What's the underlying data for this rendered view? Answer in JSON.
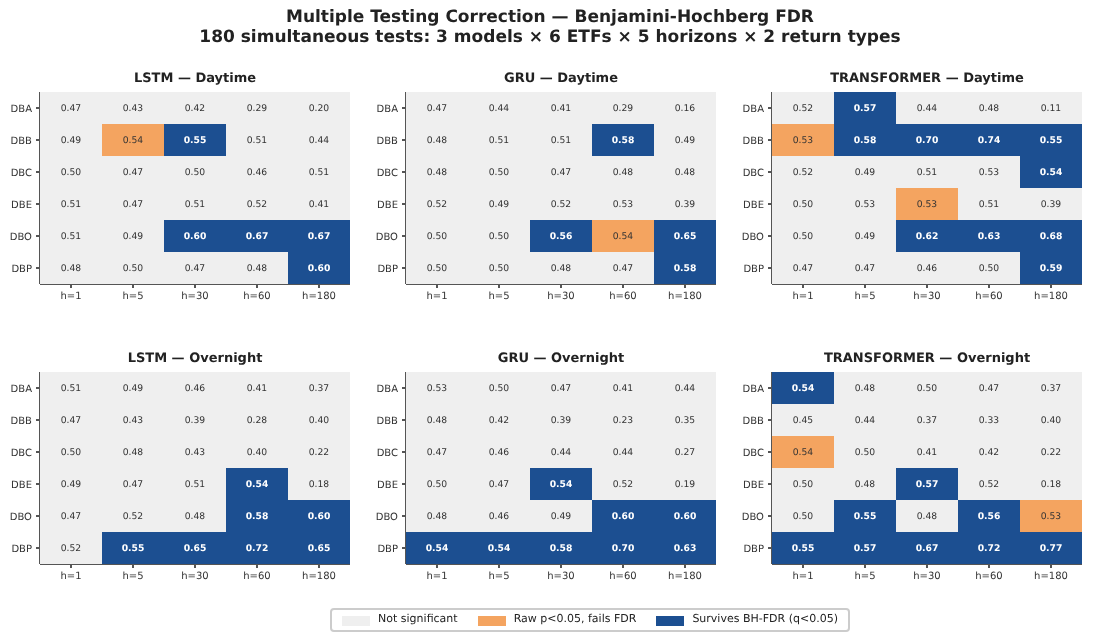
{
  "chart_data": [
    {
      "type": "heatmap",
      "data_labels": true,
      "title": "Multiple Testing Correction — Benjamini-Hochberg FDR",
      "subtitle": "180 simultaneous tests: 3 models × 6 ETFs × 5 horizons × 2 return types",
      "annotations": [
        "LSTM — Daytime"
      ],
      "categories": [
        "h=1",
        "h=5",
        "h=30",
        "h=60",
        "h=180"
      ],
      "y_categories": [
        "DBA",
        "DBB",
        "DBC",
        "DBE",
        "DBO",
        "DBP"
      ],
      "cell_labels": [
        [
          "0.47",
          "0.43",
          "0.42",
          "0.29",
          "0.20"
        ],
        [
          "0.49",
          "0.54",
          "0.55",
          "0.51",
          "0.44"
        ],
        [
          "0.50",
          "0.47",
          "0.50",
          "0.46",
          "0.51"
        ],
        [
          "0.51",
          "0.47",
          "0.51",
          "0.52",
          "0.41"
        ],
        [
          "0.51",
          "0.49",
          "0.60",
          "0.67",
          "0.67"
        ],
        [
          "0.48",
          "0.50",
          "0.47",
          "0.48",
          "0.60"
        ]
      ],
      "cells": [
        [
          0.47,
          0.43,
          0.42,
          0.29,
          0.2
        ],
        [
          0.49,
          0.54,
          0.55,
          0.51,
          0.44
        ],
        [
          0.5,
          0.47,
          0.5,
          0.46,
          0.51
        ],
        [
          0.51,
          0.47,
          0.51,
          0.52,
          0.41
        ],
        [
          0.51,
          0.49,
          0.6,
          0.67,
          0.67
        ],
        [
          0.48,
          0.5,
          0.47,
          0.48,
          0.6
        ]
      ],
      "colors": [
        [
          "#efefef",
          "#efefef",
          "#efefef",
          "#efefef",
          "#efefef"
        ],
        [
          "#efefef",
          "#f4a460",
          "#1c4f91",
          "#efefef",
          "#efefef"
        ],
        [
          "#efefef",
          "#efefef",
          "#efefef",
          "#efefef",
          "#efefef"
        ],
        [
          "#efefef",
          "#efefef",
          "#efefef",
          "#efefef",
          "#efefef"
        ],
        [
          "#efefef",
          "#efefef",
          "#1c4f91",
          "#1c4f91",
          "#1c4f91"
        ],
        [
          "#efefef",
          "#efefef",
          "#efefef",
          "#efefef",
          "#1c4f91"
        ]
      ]
    },
    {
      "type": "heatmap",
      "data_labels": true,
      "annotations": [
        "GRU — Daytime"
      ],
      "categories": [
        "h=1",
        "h=5",
        "h=30",
        "h=60",
        "h=180"
      ],
      "y_categories": [
        "DBA",
        "DBB",
        "DBC",
        "DBE",
        "DBO",
        "DBP"
      ],
      "cell_labels": [
        [
          "0.47",
          "0.44",
          "0.41",
          "0.29",
          "0.16"
        ],
        [
          "0.48",
          "0.51",
          "0.51",
          "0.58",
          "0.49"
        ],
        [
          "0.48",
          "0.50",
          "0.47",
          "0.48",
          "0.48"
        ],
        [
          "0.52",
          "0.49",
          "0.52",
          "0.53",
          "0.39"
        ],
        [
          "0.50",
          "0.50",
          "0.56",
          "0.54",
          "0.65"
        ],
        [
          "0.50",
          "0.50",
          "0.48",
          "0.47",
          "0.58"
        ]
      ],
      "cells": [
        [
          0.47,
          0.44,
          0.41,
          0.29,
          0.16
        ],
        [
          0.48,
          0.51,
          0.51,
          0.58,
          0.49
        ],
        [
          0.48,
          0.5,
          0.47,
          0.48,
          0.48
        ],
        [
          0.52,
          0.49,
          0.52,
          0.53,
          0.39
        ],
        [
          0.5,
          0.5,
          0.56,
          0.54,
          0.65
        ],
        [
          0.5,
          0.5,
          0.48,
          0.47,
          0.58
        ]
      ],
      "colors": [
        [
          "#efefef",
          "#efefef",
          "#efefef",
          "#efefef",
          "#efefef"
        ],
        [
          "#efefef",
          "#efefef",
          "#efefef",
          "#1c4f91",
          "#efefef"
        ],
        [
          "#efefef",
          "#efefef",
          "#efefef",
          "#efefef",
          "#efefef"
        ],
        [
          "#efefef",
          "#efefef",
          "#efefef",
          "#efefef",
          "#efefef"
        ],
        [
          "#efefef",
          "#efefef",
          "#1c4f91",
          "#f4a460",
          "#1c4f91"
        ],
        [
          "#efefef",
          "#efefef",
          "#efefef",
          "#efefef",
          "#1c4f91"
        ]
      ]
    },
    {
      "type": "heatmap",
      "data_labels": true,
      "annotations": [
        "TRANSFORMER — Daytime"
      ],
      "categories": [
        "h=1",
        "h=5",
        "h=30",
        "h=60",
        "h=180"
      ],
      "y_categories": [
        "DBA",
        "DBB",
        "DBC",
        "DBE",
        "DBO",
        "DBP"
      ],
      "cell_labels": [
        [
          "0.52",
          "0.57",
          "0.44",
          "0.48",
          "0.11"
        ],
        [
          "0.53",
          "0.58",
          "0.70",
          "0.74",
          "0.55"
        ],
        [
          "0.52",
          "0.49",
          "0.51",
          "0.53",
          "0.54"
        ],
        [
          "0.50",
          "0.53",
          "0.53",
          "0.51",
          "0.39"
        ],
        [
          "0.50",
          "0.49",
          "0.62",
          "0.63",
          "0.68"
        ],
        [
          "0.47",
          "0.47",
          "0.46",
          "0.50",
          "0.59"
        ]
      ],
      "cells": [
        [
          0.52,
          0.57,
          0.44,
          0.48,
          0.11
        ],
        [
          0.53,
          0.58,
          0.7,
          0.74,
          0.55
        ],
        [
          0.52,
          0.49,
          0.51,
          0.53,
          0.54
        ],
        [
          0.5,
          0.53,
          0.53,
          0.51,
          0.39
        ],
        [
          0.5,
          0.49,
          0.62,
          0.63,
          0.68
        ],
        [
          0.47,
          0.47,
          0.46,
          0.5,
          0.59
        ]
      ],
      "colors": [
        [
          "#efefef",
          "#1c4f91",
          "#efefef",
          "#efefef",
          "#efefef"
        ],
        [
          "#f4a460",
          "#1c4f91",
          "#1c4f91",
          "#1c4f91",
          "#1c4f91"
        ],
        [
          "#efefef",
          "#efefef",
          "#efefef",
          "#efefef",
          "#1c4f91"
        ],
        [
          "#efefef",
          "#efefef",
          "#f4a460",
          "#efefef",
          "#efefef"
        ],
        [
          "#efefef",
          "#efefef",
          "#1c4f91",
          "#1c4f91",
          "#1c4f91"
        ],
        [
          "#efefef",
          "#efefef",
          "#efefef",
          "#efefef",
          "#1c4f91"
        ]
      ]
    },
    {
      "type": "heatmap",
      "data_labels": true,
      "annotations": [
        "LSTM — Overnight"
      ],
      "categories": [
        "h=1",
        "h=5",
        "h=30",
        "h=60",
        "h=180"
      ],
      "y_categories": [
        "DBA",
        "DBB",
        "DBC",
        "DBE",
        "DBO",
        "DBP"
      ],
      "cell_labels": [
        [
          "0.51",
          "0.49",
          "0.46",
          "0.41",
          "0.37"
        ],
        [
          "0.47",
          "0.43",
          "0.39",
          "0.28",
          "0.40"
        ],
        [
          "0.50",
          "0.48",
          "0.43",
          "0.40",
          "0.22"
        ],
        [
          "0.49",
          "0.47",
          "0.51",
          "0.54",
          "0.18"
        ],
        [
          "0.47",
          "0.52",
          "0.48",
          "0.58",
          "0.60"
        ],
        [
          "0.52",
          "0.55",
          "0.65",
          "0.72",
          "0.65"
        ]
      ],
      "cells": [
        [
          0.51,
          0.49,
          0.46,
          0.41,
          0.37
        ],
        [
          0.47,
          0.43,
          0.39,
          0.28,
          0.4
        ],
        [
          0.5,
          0.48,
          0.43,
          0.4,
          0.22
        ],
        [
          0.49,
          0.47,
          0.51,
          0.54,
          0.18
        ],
        [
          0.47,
          0.52,
          0.48,
          0.58,
          0.6
        ],
        [
          0.52,
          0.55,
          0.65,
          0.72,
          0.65
        ]
      ],
      "colors": [
        [
          "#efefef",
          "#efefef",
          "#efefef",
          "#efefef",
          "#efefef"
        ],
        [
          "#efefef",
          "#efefef",
          "#efefef",
          "#efefef",
          "#efefef"
        ],
        [
          "#efefef",
          "#efefef",
          "#efefef",
          "#efefef",
          "#efefef"
        ],
        [
          "#efefef",
          "#efefef",
          "#efefef",
          "#1c4f91",
          "#efefef"
        ],
        [
          "#efefef",
          "#efefef",
          "#efefef",
          "#1c4f91",
          "#1c4f91"
        ],
        [
          "#efefef",
          "#1c4f91",
          "#1c4f91",
          "#1c4f91",
          "#1c4f91"
        ]
      ]
    },
    {
      "type": "heatmap",
      "data_labels": true,
      "annotations": [
        "GRU — Overnight"
      ],
      "categories": [
        "h=1",
        "h=5",
        "h=30",
        "h=60",
        "h=180"
      ],
      "y_categories": [
        "DBA",
        "DBB",
        "DBC",
        "DBE",
        "DBO",
        "DBP"
      ],
      "cell_labels": [
        [
          "0.53",
          "0.50",
          "0.47",
          "0.41",
          "0.44"
        ],
        [
          "0.48",
          "0.42",
          "0.39",
          "0.23",
          "0.35"
        ],
        [
          "0.47",
          "0.46",
          "0.44",
          "0.44",
          "0.27"
        ],
        [
          "0.50",
          "0.47",
          "0.54",
          "0.52",
          "0.19"
        ],
        [
          "0.48",
          "0.46",
          "0.49",
          "0.60",
          "0.60"
        ],
        [
          "0.54",
          "0.54",
          "0.58",
          "0.70",
          "0.63"
        ]
      ],
      "cells": [
        [
          0.53,
          0.5,
          0.47,
          0.41,
          0.44
        ],
        [
          0.48,
          0.42,
          0.39,
          0.23,
          0.35
        ],
        [
          0.47,
          0.46,
          0.44,
          0.44,
          0.27
        ],
        [
          0.5,
          0.47,
          0.54,
          0.52,
          0.19
        ],
        [
          0.48,
          0.46,
          0.49,
          0.6,
          0.6
        ],
        [
          0.54,
          0.54,
          0.58,
          0.7,
          0.63
        ]
      ],
      "colors": [
        [
          "#efefef",
          "#efefef",
          "#efefef",
          "#efefef",
          "#efefef"
        ],
        [
          "#efefef",
          "#efefef",
          "#efefef",
          "#efefef",
          "#efefef"
        ],
        [
          "#efefef",
          "#efefef",
          "#efefef",
          "#efefef",
          "#efefef"
        ],
        [
          "#efefef",
          "#efefef",
          "#1c4f91",
          "#efefef",
          "#efefef"
        ],
        [
          "#efefef",
          "#efefef",
          "#efefef",
          "#1c4f91",
          "#1c4f91"
        ],
        [
          "#1c4f91",
          "#1c4f91",
          "#1c4f91",
          "#1c4f91",
          "#1c4f91"
        ]
      ]
    },
    {
      "type": "heatmap",
      "data_labels": true,
      "annotations": [
        "TRANSFORMER — Overnight"
      ],
      "categories": [
        "h=1",
        "h=5",
        "h=30",
        "h=60",
        "h=180"
      ],
      "y_categories": [
        "DBA",
        "DBB",
        "DBC",
        "DBE",
        "DBO",
        "DBP"
      ],
      "cell_labels": [
        [
          "0.54",
          "0.48",
          "0.50",
          "0.47",
          "0.37"
        ],
        [
          "0.45",
          "0.44",
          "0.37",
          "0.33",
          "0.40"
        ],
        [
          "0.54",
          "0.50",
          "0.41",
          "0.42",
          "0.22"
        ],
        [
          "0.50",
          "0.48",
          "0.57",
          "0.52",
          "0.18"
        ],
        [
          "0.50",
          "0.55",
          "0.48",
          "0.56",
          "0.53"
        ],
        [
          "0.55",
          "0.57",
          "0.67",
          "0.72",
          "0.77"
        ]
      ],
      "cells": [
        [
          0.54,
          0.48,
          0.5,
          0.47,
          0.37
        ],
        [
          0.45,
          0.44,
          0.37,
          0.33,
          0.4
        ],
        [
          0.54,
          0.5,
          0.41,
          0.42,
          0.22
        ],
        [
          0.5,
          0.48,
          0.57,
          0.52,
          0.18
        ],
        [
          0.5,
          0.55,
          0.48,
          0.56,
          0.53
        ],
        [
          0.55,
          0.57,
          0.67,
          0.72,
          0.77
        ]
      ],
      "colors": [
        [
          "#1c4f91",
          "#efefef",
          "#efefef",
          "#efefef",
          "#efefef"
        ],
        [
          "#efefef",
          "#efefef",
          "#efefef",
          "#efefef",
          "#efefef"
        ],
        [
          "#f4a460",
          "#efefef",
          "#efefef",
          "#efefef",
          "#efefef"
        ],
        [
          "#efefef",
          "#efefef",
          "#1c4f91",
          "#efefef",
          "#efefef"
        ],
        [
          "#efefef",
          "#1c4f91",
          "#efefef",
          "#1c4f91",
          "#f4a460"
        ],
        [
          "#1c4f91",
          "#1c4f91",
          "#1c4f91",
          "#1c4f91",
          "#1c4f91"
        ]
      ],
      "legend": "bottom",
      "series": [
        {
          "name": "Not significant",
          "color": "#efefef",
          "values": [
            null,
            null,
            null,
            null,
            null
          ]
        },
        {
          "name": "Raw p<0.05, fails FDR",
          "color": "#f4a460",
          "values": [
            null,
            null,
            null,
            null,
            null
          ]
        },
        {
          "name": "Survives BH-FDR (q<0.05)",
          "color": "#1c4f91",
          "values": [
            null,
            null,
            null,
            null,
            null
          ]
        }
      ]
    }
  ]
}
